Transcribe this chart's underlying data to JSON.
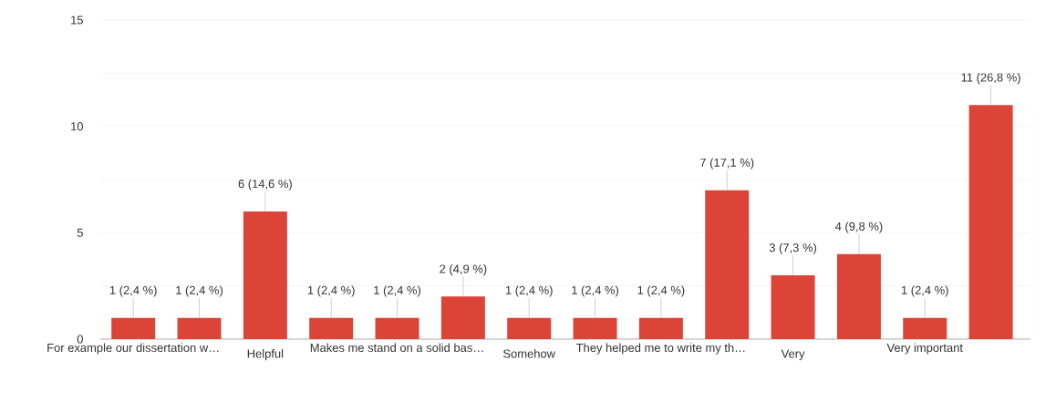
{
  "chart_data": {
    "type": "bar",
    "categories": [
      "For example our dissertation w…",
      null,
      "Helpful",
      null,
      "Makes me stand on a solid bas…",
      null,
      "Somehow",
      null,
      "They helped me to write my th…",
      null,
      "Very",
      null,
      "Very important",
      null
    ],
    "values": [
      1,
      1,
      6,
      1,
      1,
      2,
      1,
      1,
      1,
      7,
      3,
      4,
      1,
      11
    ],
    "value_labels": [
      "1 (2,4 %)",
      "1 (2,4 %)",
      "6 (14,6 %)",
      "1 (2,4 %)",
      "1 (2,4 %)",
      "2 (4,9 %)",
      "1 (2,4 %)",
      "1 (2,4 %)",
      "1 (2,4 %)",
      "7 (17,1 %)",
      "3 (7,3 %)",
      "4 (9,8 %)",
      "1 (2,4 %)",
      "11 (26,8 %)"
    ],
    "color": "#db4437",
    "ylim": [
      0,
      15
    ],
    "yticks": [
      0,
      {
        "value": 2.5,
        "label": null
      },
      5,
      {
        "value": 7.5,
        "label": null
      },
      10,
      {
        "value": 12.5,
        "label": null
      },
      15
    ],
    "grid": "y"
  }
}
